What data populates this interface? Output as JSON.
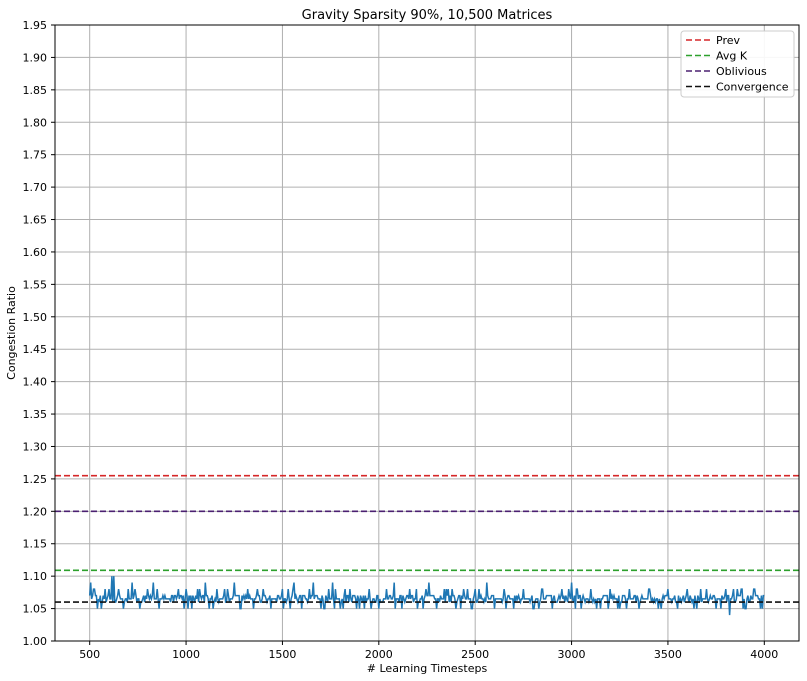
{
  "chart_data": {
    "type": "line",
    "title": "Gravity Sparsity 90%, 10,500 Matrices",
    "xlabel": "# Learning Timesteps",
    "ylabel": "Congestion Ratio",
    "xlim": [
      320,
      4180
    ],
    "ylim": [
      1.0,
      1.95
    ],
    "xticks": [
      500,
      1000,
      1500,
      2000,
      2500,
      3000,
      3500,
      4000
    ],
    "yticks": [
      1.0,
      1.05,
      1.1,
      1.15,
      1.2,
      1.25,
      1.3,
      1.35,
      1.4,
      1.45,
      1.5,
      1.55,
      1.6,
      1.65,
      1.7,
      1.75,
      1.8,
      1.85,
      1.9,
      1.95
    ],
    "grid": true,
    "legend_position": "top-right",
    "reference_lines": [
      {
        "name": "Prev",
        "y": 1.255,
        "color": "#d62728",
        "style": "dashed"
      },
      {
        "name": "Avg K",
        "y": 1.109,
        "color": "#2ca02c",
        "style": "dashed"
      },
      {
        "name": "Oblivious",
        "y": 1.2,
        "color": "#4b2071",
        "style": "dashed"
      },
      {
        "name": "Convergence",
        "y": 1.06,
        "color": "#111111",
        "style": "dashed"
      }
    ],
    "series": [
      {
        "color": "#1f77b4",
        "x_start": 500,
        "x_end": 4000,
        "x_step": 5,
        "baseline": 1.065,
        "range": [
          1.04,
          1.1
        ],
        "spikes": [
          {
            "x": 505,
            "y": 1.09
          },
          {
            "x": 520,
            "y": 1.08
          },
          {
            "x": 540,
            "y": 1.05
          },
          {
            "x": 560,
            "y": 1.05
          },
          {
            "x": 580,
            "y": 1.08
          },
          {
            "x": 600,
            "y": 1.08
          },
          {
            "x": 615,
            "y": 1.1
          },
          {
            "x": 625,
            "y": 1.1
          },
          {
            "x": 650,
            "y": 1.08
          },
          {
            "x": 700,
            "y": 1.08
          },
          {
            "x": 720,
            "y": 1.09
          },
          {
            "x": 760,
            "y": 1.05
          },
          {
            "x": 800,
            "y": 1.08
          },
          {
            "x": 830,
            "y": 1.09
          },
          {
            "x": 850,
            "y": 1.08
          },
          {
            "x": 880,
            "y": 1.07
          },
          {
            "x": 960,
            "y": 1.08
          },
          {
            "x": 1000,
            "y": 1.08
          },
          {
            "x": 1030,
            "y": 1.05
          },
          {
            "x": 1060,
            "y": 1.08
          },
          {
            "x": 1100,
            "y": 1.09
          },
          {
            "x": 1140,
            "y": 1.05
          },
          {
            "x": 1160,
            "y": 1.08
          },
          {
            "x": 1200,
            "y": 1.08
          },
          {
            "x": 1250,
            "y": 1.09
          },
          {
            "x": 1280,
            "y": 1.05
          },
          {
            "x": 1320,
            "y": 1.08
          },
          {
            "x": 1350,
            "y": 1.05
          },
          {
            "x": 1400,
            "y": 1.08
          },
          {
            "x": 1440,
            "y": 1.05
          },
          {
            "x": 1500,
            "y": 1.08
          },
          {
            "x": 1540,
            "y": 1.05
          },
          {
            "x": 1560,
            "y": 1.09
          },
          {
            "x": 1600,
            "y": 1.05
          },
          {
            "x": 1640,
            "y": 1.08
          },
          {
            "x": 1660,
            "y": 1.09
          },
          {
            "x": 1700,
            "y": 1.05
          },
          {
            "x": 1740,
            "y": 1.08
          },
          {
            "x": 1760,
            "y": 1.09
          },
          {
            "x": 1800,
            "y": 1.05
          },
          {
            "x": 1850,
            "y": 1.08
          },
          {
            "x": 1900,
            "y": 1.05
          },
          {
            "x": 1950,
            "y": 1.08
          },
          {
            "x": 2000,
            "y": 1.05
          },
          {
            "x": 2040,
            "y": 1.08
          },
          {
            "x": 2080,
            "y": 1.09
          },
          {
            "x": 2120,
            "y": 1.05
          },
          {
            "x": 2160,
            "y": 1.08
          },
          {
            "x": 2200,
            "y": 1.05
          },
          {
            "x": 2260,
            "y": 1.09
          },
          {
            "x": 2300,
            "y": 1.05
          },
          {
            "x": 2350,
            "y": 1.08
          },
          {
            "x": 2400,
            "y": 1.05
          },
          {
            "x": 2440,
            "y": 1.08
          },
          {
            "x": 2480,
            "y": 1.05
          },
          {
            "x": 2520,
            "y": 1.08
          },
          {
            "x": 2560,
            "y": 1.09
          },
          {
            "x": 2600,
            "y": 1.05
          },
          {
            "x": 2650,
            "y": 1.08
          },
          {
            "x": 2700,
            "y": 1.05
          },
          {
            "x": 2750,
            "y": 1.08
          },
          {
            "x": 2800,
            "y": 1.05
          },
          {
            "x": 2850,
            "y": 1.08
          },
          {
            "x": 2900,
            "y": 1.05
          },
          {
            "x": 2950,
            "y": 1.08
          },
          {
            "x": 3000,
            "y": 1.09
          },
          {
            "x": 3050,
            "y": 1.05
          },
          {
            "x": 3100,
            "y": 1.08
          },
          {
            "x": 3150,
            "y": 1.05
          },
          {
            "x": 3200,
            "y": 1.08
          },
          {
            "x": 3250,
            "y": 1.05
          },
          {
            "x": 3300,
            "y": 1.08
          },
          {
            "x": 3350,
            "y": 1.05
          },
          {
            "x": 3400,
            "y": 1.08
          },
          {
            "x": 3450,
            "y": 1.05
          },
          {
            "x": 3500,
            "y": 1.08
          },
          {
            "x": 3550,
            "y": 1.05
          },
          {
            "x": 3600,
            "y": 1.08
          },
          {
            "x": 3650,
            "y": 1.05
          },
          {
            "x": 3700,
            "y": 1.08
          },
          {
            "x": 3750,
            "y": 1.05
          },
          {
            "x": 3800,
            "y": 1.08
          },
          {
            "x": 3820,
            "y": 1.04
          },
          {
            "x": 3860,
            "y": 1.08
          },
          {
            "x": 3900,
            "y": 1.05
          },
          {
            "x": 3950,
            "y": 1.08
          },
          {
            "x": 3980,
            "y": 1.05
          },
          {
            "x": 3995,
            "y": 1.07
          }
        ]
      }
    ]
  }
}
